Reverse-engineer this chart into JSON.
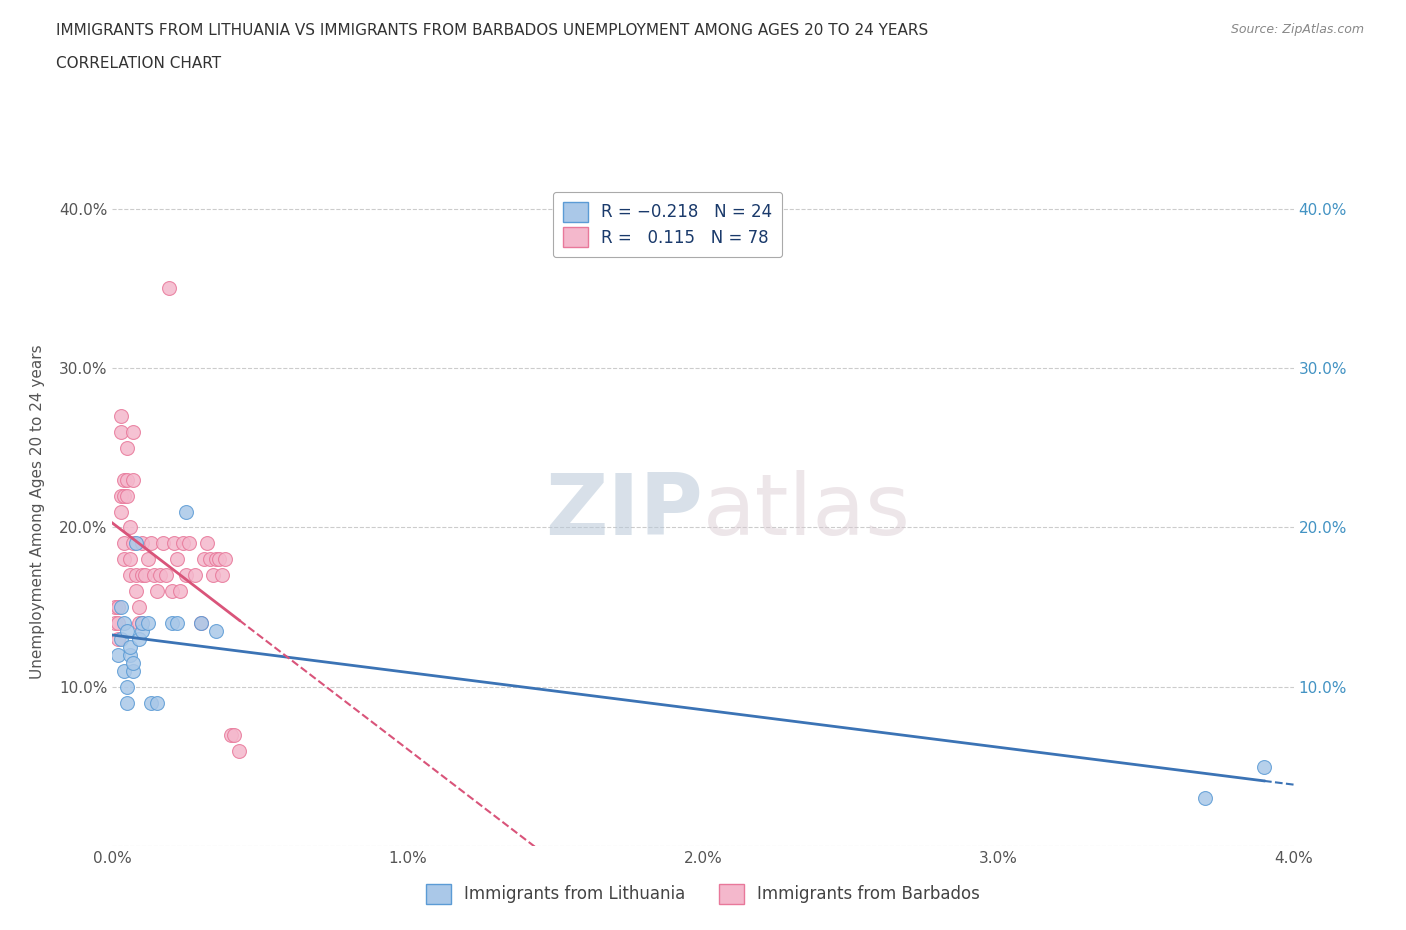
{
  "title_line1": "IMMIGRANTS FROM LITHUANIA VS IMMIGRANTS FROM BARBADOS UNEMPLOYMENT AMONG AGES 20 TO 24 YEARS",
  "title_line2": "CORRELATION CHART",
  "source_text": "Source: ZipAtlas.com",
  "ylabel": "Unemployment Among Ages 20 to 24 years",
  "xlim": [
    0.0,
    0.04
  ],
  "ylim": [
    0.0,
    0.42
  ],
  "x_ticks": [
    0.0,
    0.01,
    0.02,
    0.03,
    0.04
  ],
  "x_tick_labels": [
    "0.0%",
    "1.0%",
    "2.0%",
    "3.0%",
    "4.0%"
  ],
  "y_ticks": [
    0.0,
    0.1,
    0.2,
    0.3,
    0.4
  ],
  "y_tick_labels": [
    "",
    "10.0%",
    "20.0%",
    "30.0%",
    "40.0%"
  ],
  "right_y_ticks": [
    0.1,
    0.2,
    0.3,
    0.4
  ],
  "right_y_tick_labels": [
    "10.0%",
    "20.0%",
    "30.0%",
    "40.0%"
  ],
  "color_lithuania": "#aac8e8",
  "color_barbados": "#f4b8cc",
  "edge_color_lithuania": "#5b9bd5",
  "edge_color_barbados": "#e8789a",
  "line_color_lithuania": "#3b73b5",
  "line_color_barbados": "#d9547a",
  "watermark_color": "#d0dff0",
  "lithuania_scatter_x": [
    0.0002,
    0.0003,
    0.0003,
    0.0004,
    0.0004,
    0.0005,
    0.0005,
    0.0005,
    0.0006,
    0.0006,
    0.0007,
    0.0007,
    0.0008,
    0.0009,
    0.001,
    0.001,
    0.0012,
    0.0013,
    0.0015,
    0.002,
    0.0022,
    0.0025,
    0.003,
    0.0035,
    0.037,
    0.039
  ],
  "lithuania_scatter_y": [
    0.12,
    0.13,
    0.15,
    0.14,
    0.11,
    0.135,
    0.1,
    0.09,
    0.12,
    0.125,
    0.11,
    0.115,
    0.19,
    0.13,
    0.135,
    0.14,
    0.14,
    0.09,
    0.09,
    0.14,
    0.14,
    0.21,
    0.14,
    0.135,
    0.03,
    0.05
  ],
  "barbados_scatter_x": [
    0.0001,
    0.0001,
    0.0002,
    0.0002,
    0.0002,
    0.0003,
    0.0003,
    0.0003,
    0.0003,
    0.0004,
    0.0004,
    0.0004,
    0.0004,
    0.0005,
    0.0005,
    0.0005,
    0.0006,
    0.0006,
    0.0006,
    0.0007,
    0.0007,
    0.0007,
    0.0008,
    0.0008,
    0.0009,
    0.0009,
    0.001,
    0.001,
    0.001,
    0.0011,
    0.0012,
    0.0013,
    0.0014,
    0.0015,
    0.0016,
    0.0017,
    0.0018,
    0.0019,
    0.002,
    0.0021,
    0.0022,
    0.0023,
    0.0024,
    0.0025,
    0.0026,
    0.0028,
    0.003,
    0.0031,
    0.0032,
    0.0033,
    0.0034,
    0.0035,
    0.0036,
    0.0037,
    0.0038,
    0.004,
    0.0041,
    0.0043
  ],
  "barbados_scatter_y": [
    0.14,
    0.15,
    0.14,
    0.13,
    0.15,
    0.26,
    0.27,
    0.22,
    0.21,
    0.23,
    0.22,
    0.18,
    0.19,
    0.25,
    0.23,
    0.22,
    0.2,
    0.18,
    0.17,
    0.19,
    0.23,
    0.26,
    0.17,
    0.16,
    0.15,
    0.14,
    0.19,
    0.14,
    0.17,
    0.17,
    0.18,
    0.19,
    0.17,
    0.16,
    0.17,
    0.19,
    0.17,
    0.35,
    0.16,
    0.19,
    0.18,
    0.16,
    0.19,
    0.17,
    0.19,
    0.17,
    0.14,
    0.18,
    0.19,
    0.18,
    0.17,
    0.18,
    0.18,
    0.17,
    0.18,
    0.07,
    0.07,
    0.06
  ]
}
